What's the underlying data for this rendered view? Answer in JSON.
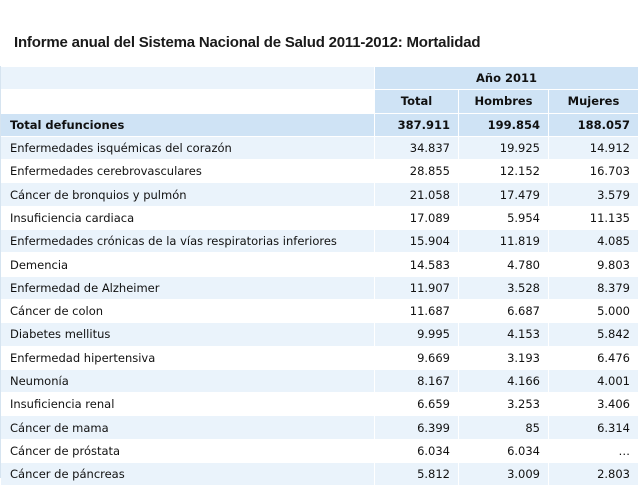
{
  "title": "Informe anual del Sistema Nacional de Salud 2011-2012: Mortalidad",
  "table": {
    "year_header": "Año 2011",
    "columns": [
      "Total",
      "Hombres",
      "Mujeres"
    ],
    "total_row": {
      "label": "Total defunciones",
      "total": "387.911",
      "hombres": "199.854",
      "mujeres": "188.057"
    },
    "rows": [
      {
        "label": "Enfermedades isquémicas del corazón",
        "total": "34.837",
        "hombres": "19.925",
        "mujeres": "14.912"
      },
      {
        "label": "Enfermedades cerebrovasculares",
        "total": "28.855",
        "hombres": "12.152",
        "mujeres": "16.703"
      },
      {
        "label": "Cáncer de bronquios y pulmón",
        "total": "21.058",
        "hombres": "17.479",
        "mujeres": "3.579"
      },
      {
        "label": "Insuficiencia cardiaca",
        "total": "17.089",
        "hombres": "5.954",
        "mujeres": "11.135"
      },
      {
        "label": "Enfermedades crónicas de la vías respiratorias inferiores",
        "total": "15.904",
        "hombres": "11.819",
        "mujeres": "4.085"
      },
      {
        "label": "Demencia",
        "total": "14.583",
        "hombres": "4.780",
        "mujeres": "9.803"
      },
      {
        "label": "Enfermedad de Alzheimer",
        "total": "11.907",
        "hombres": "3.528",
        "mujeres": "8.379"
      },
      {
        "label": "Cáncer de colon",
        "total": "11.687",
        "hombres": "6.687",
        "mujeres": "5.000"
      },
      {
        "label": "Diabetes mellitus",
        "total": "9.995",
        "hombres": "4.153",
        "mujeres": "5.842"
      },
      {
        "label": "Enfermedad hipertensiva",
        "total": "9.669",
        "hombres": "3.193",
        "mujeres": "6.476"
      },
      {
        "label": "Neumonía",
        "total": "8.167",
        "hombres": "4.166",
        "mujeres": "4.001"
      },
      {
        "label": "Insuficiencia  renal",
        "total": "6.659",
        "hombres": "3.253",
        "mujeres": "3.406"
      },
      {
        "label": "Cáncer de mama",
        "total": "6.399",
        "hombres": "85",
        "mujeres": "6.314"
      },
      {
        "label": "Cáncer de próstata",
        "total": "6.034",
        "hombres": "6.034",
        "mujeres": "…"
      },
      {
        "label": "Cáncer de páncreas",
        "total": "5.812",
        "hombres": "3.009",
        "mujeres": "2.803"
      }
    ]
  },
  "colors": {
    "header_blue": "#cfe3f5",
    "row_light": "#eaf3fb"
  }
}
